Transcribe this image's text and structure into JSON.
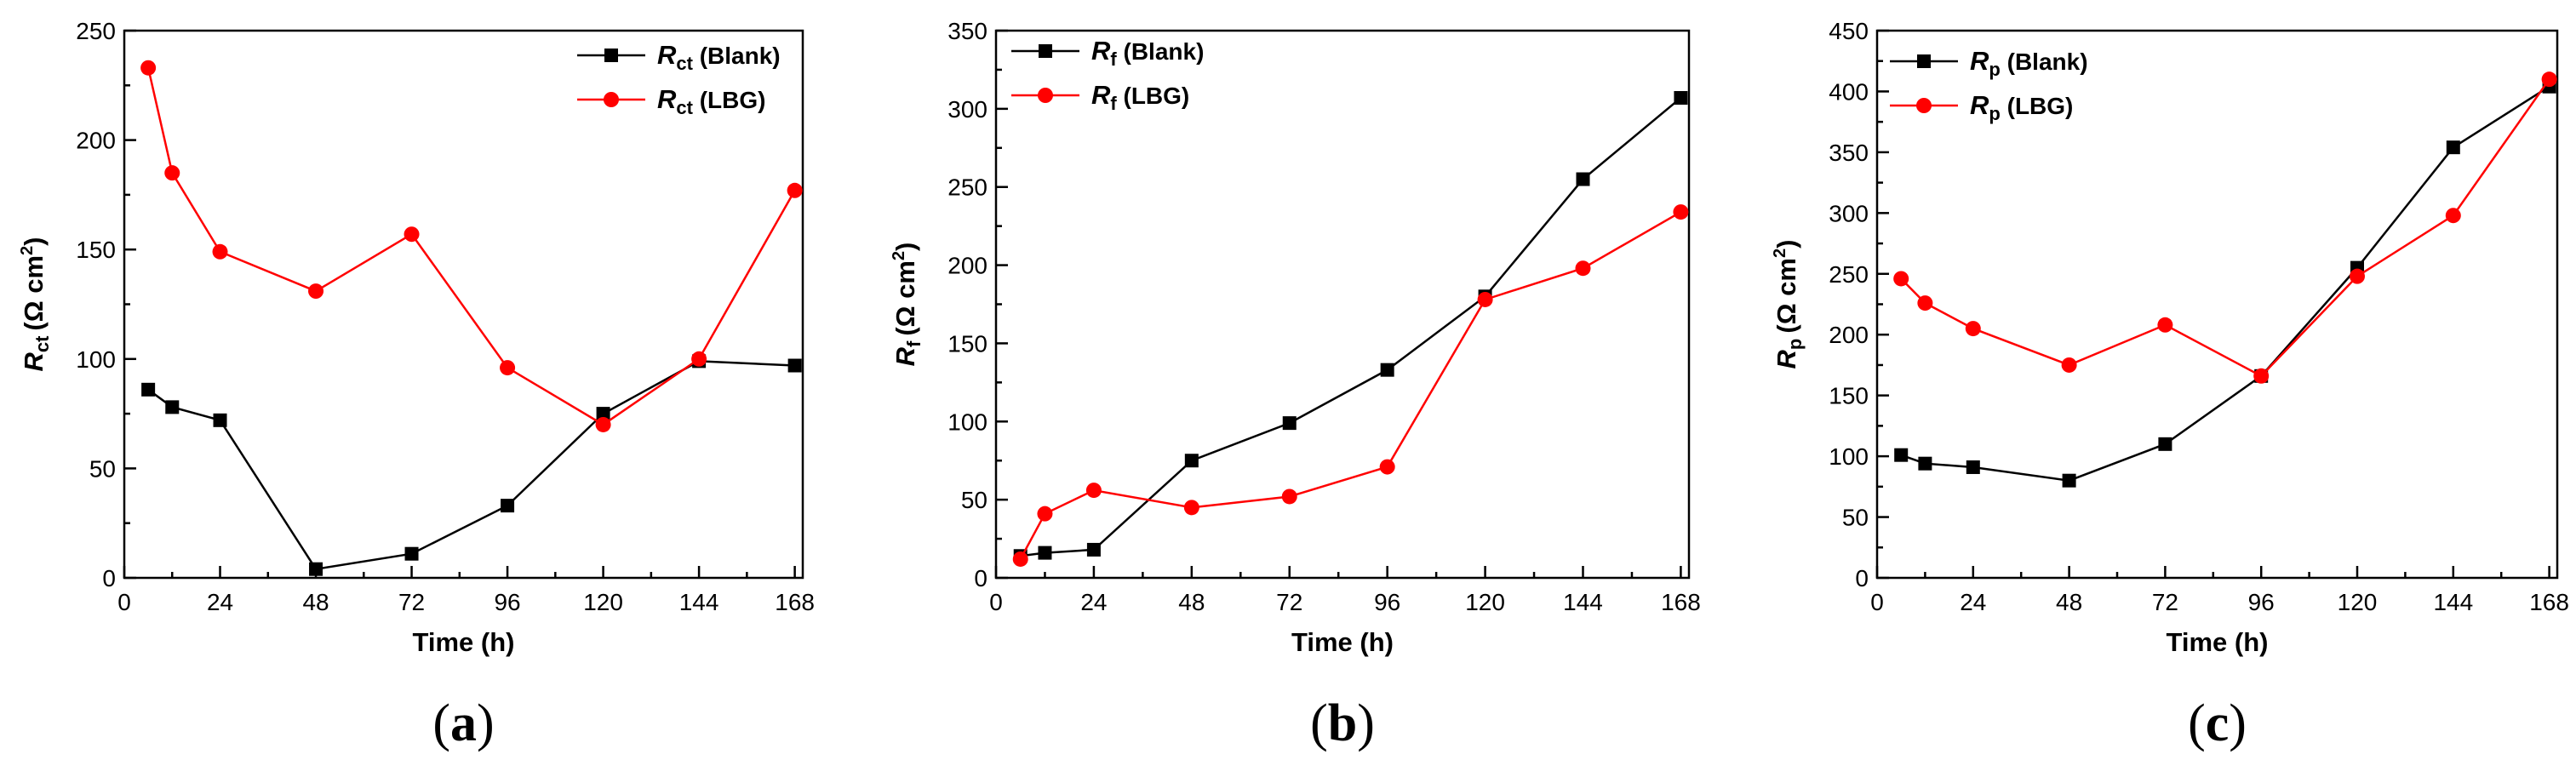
{
  "chart_data": [
    {
      "type": "line",
      "panel_label": "a",
      "xlabel": "Time (h)",
      "ylabel": {
        "symbol": "R",
        "subscript": "ct",
        "unit": "(Ω cm",
        "sup": "2",
        "close": ")"
      },
      "xlim": [
        0,
        170
      ],
      "ylim": [
        0,
        250
      ],
      "xticks": [
        0,
        24,
        48,
        72,
        96,
        120,
        144,
        168
      ],
      "yticks": [
        0,
        50,
        100,
        150,
        200,
        250
      ],
      "legend_position": "top-right",
      "x": [
        6,
        12,
        24,
        48,
        72,
        96,
        120,
        144,
        168
      ],
      "series": [
        {
          "name": {
            "symbol": "R",
            "subscript": "ct",
            "label": " (Blank)"
          },
          "color": "#000000",
          "marker": "square",
          "values": [
            86,
            78,
            72,
            4,
            11,
            33,
            75,
            99,
            97
          ]
        },
        {
          "name": {
            "symbol": "R",
            "subscript": "ct",
            "label": " (LBG)"
          },
          "color": "#ff0000",
          "marker": "circle",
          "values": [
            233,
            185,
            149,
            131,
            157,
            96,
            70,
            100,
            177
          ]
        }
      ]
    },
    {
      "type": "line",
      "panel_label": "b",
      "xlabel": "Time (h)",
      "ylabel": {
        "symbol": "R",
        "subscript": "f",
        "unit": "(Ω cm",
        "sup": "2",
        "close": ")"
      },
      "xlim": [
        0,
        170
      ],
      "ylim": [
        0,
        350
      ],
      "xticks": [
        0,
        24,
        48,
        72,
        96,
        120,
        144,
        168
      ],
      "yticks": [
        0,
        50,
        100,
        150,
        200,
        250,
        300,
        350
      ],
      "legend_position": "top-left",
      "x": [
        6,
        12,
        24,
        48,
        72,
        96,
        120,
        144,
        168
      ],
      "series": [
        {
          "name": {
            "symbol": "R",
            "subscript": "f",
            "label": " (Blank)"
          },
          "color": "#000000",
          "marker": "square",
          "values": [
            14,
            16,
            18,
            75,
            99,
            133,
            180,
            255,
            307
          ]
        },
        {
          "name": {
            "symbol": "R",
            "subscript": "f",
            "label": " (LBG)"
          },
          "color": "#ff0000",
          "marker": "circle",
          "values": [
            12,
            41,
            56,
            45,
            52,
            71,
            178,
            198,
            234
          ]
        }
      ]
    },
    {
      "type": "line",
      "panel_label": "c",
      "xlabel": "Time (h)",
      "ylabel": {
        "symbol": "R",
        "subscript": "p",
        "unit": "(Ω cm",
        "sup": "2",
        "close": ")"
      },
      "xlim": [
        0,
        170
      ],
      "ylim": [
        0,
        450
      ],
      "xticks": [
        0,
        24,
        48,
        72,
        96,
        120,
        144,
        168
      ],
      "yticks": [
        0,
        50,
        100,
        150,
        200,
        250,
        300,
        350,
        400,
        450
      ],
      "legend_position": "top-left",
      "x": [
        6,
        12,
        24,
        48,
        72,
        96,
        120,
        144,
        168
      ],
      "series": [
        {
          "name": {
            "symbol": "R",
            "subscript": "p",
            "label": " (Blank)"
          },
          "color": "#000000",
          "marker": "square",
          "values": [
            101,
            94,
            91,
            80,
            110,
            166,
            255,
            354,
            404
          ]
        },
        {
          "name": {
            "symbol": "R",
            "subscript": "p",
            "label": " (LBG)"
          },
          "color": "#ff0000",
          "marker": "circle",
          "values": [
            246,
            226,
            205,
            175,
            208,
            166,
            248,
            298,
            410
          ]
        }
      ]
    }
  ]
}
